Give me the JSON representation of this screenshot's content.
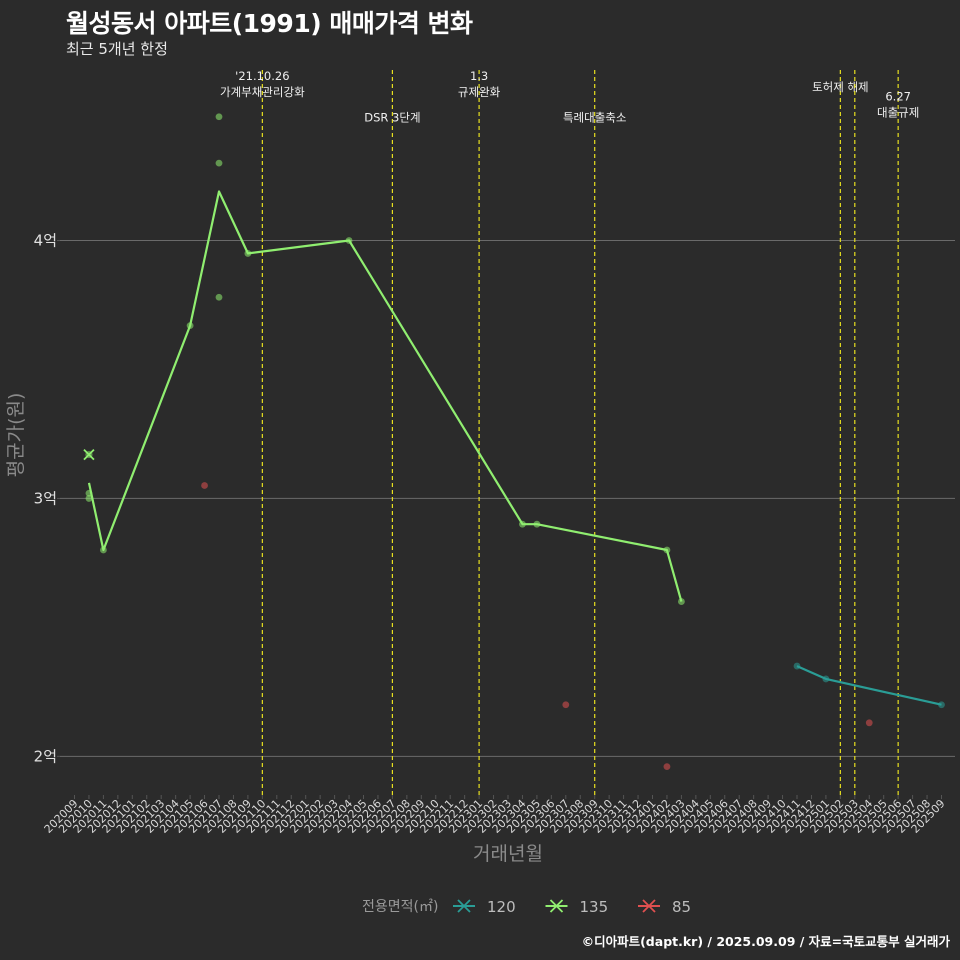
{
  "title": "월성동서 아파트(1991) 매매가격 변화",
  "subtitle": "최근 5개년 한정",
  "caption": "©디아파트(dapt.kr) / 2025.09.09 / 자료=국토교통부 실거래가",
  "chart_data": {
    "type": "line",
    "xlabel": "거래년월",
    "ylabel": "평균가(원)",
    "ylim": [
      1.85,
      4.7
    ],
    "y_unit": "억",
    "y_ticks": [
      {
        "value": 2,
        "label": "2억"
      },
      {
        "value": 3,
        "label": "3억"
      },
      {
        "value": 4,
        "label": "4억"
      }
    ],
    "grid": "horizontal",
    "months": [
      "202009",
      "202010",
      "202011",
      "202012",
      "202101",
      "202102",
      "202103",
      "202104",
      "202105",
      "202106",
      "202107",
      "202108",
      "202109",
      "202110",
      "202111",
      "202112",
      "202201",
      "202202",
      "202203",
      "202204",
      "202205",
      "202206",
      "202207",
      "202208",
      "202209",
      "202210",
      "202211",
      "202212",
      "202301",
      "202302",
      "202303",
      "202304",
      "202305",
      "202306",
      "202307",
      "202308",
      "202309",
      "202310",
      "202311",
      "202312",
      "202401",
      "202402",
      "202403",
      "202404",
      "202405",
      "202406",
      "202407",
      "202408",
      "202409",
      "202410",
      "202411",
      "202412",
      "202501",
      "202502",
      "202503",
      "202504",
      "202505",
      "202506",
      "202507",
      "202508",
      "202509"
    ],
    "events": [
      {
        "month": "202110",
        "label_lines": [
          "'21.10.26",
          "가계부채관리강화"
        ],
        "value": 4.58
      },
      {
        "month": "202207",
        "label_lines": [
          "DSR 3단계"
        ],
        "value": 4.48
      },
      {
        "month": "202301",
        "label_lines": [
          "1.3",
          "규제완화"
        ],
        "value": 4.58
      },
      {
        "month": "202309",
        "label_lines": [
          "특례대출축소"
        ],
        "value": 4.48
      },
      {
        "month": "202502",
        "label_lines": [
          "토허제 해제"
        ],
        "value": 4.6
      },
      {
        "month": "202503",
        "label_lines": [],
        "value": 4.6
      },
      {
        "month": "202506",
        "label_lines": [
          "6.27",
          "대출규제"
        ],
        "value": 4.5
      }
    ],
    "series": [
      {
        "name": "120",
        "color": "#2a9d96",
        "line": [
          [
            "202411",
            2.35
          ],
          [
            "202501",
            2.3
          ],
          [
            "202509",
            2.2
          ]
        ],
        "points": [
          [
            "202411",
            2.35
          ],
          [
            "202501",
            2.3
          ],
          [
            "202509",
            2.2
          ]
        ]
      },
      {
        "name": "135",
        "color": "#90ee70",
        "line": [
          [
            "202010",
            3.06
          ],
          [
            "202011",
            2.8
          ],
          [
            "202105",
            3.67
          ],
          [
            "202107",
            4.19
          ],
          [
            "202109",
            3.95
          ],
          [
            "202204",
            4.0
          ],
          [
            "202304",
            2.9
          ],
          [
            "202305",
            2.9
          ],
          [
            "202402",
            2.8
          ],
          [
            "202403",
            2.6
          ]
        ],
        "points": [
          [
            "202010",
            3.0
          ],
          [
            "202010",
            3.02
          ],
          [
            "202011",
            2.8
          ],
          [
            "202105",
            3.67
          ],
          [
            "202107",
            4.48
          ],
          [
            "202107",
            4.3
          ],
          [
            "202107",
            3.78
          ],
          [
            "202109",
            3.95
          ],
          [
            "202204",
            4.0
          ],
          [
            "202304",
            2.9
          ],
          [
            "202305",
            2.9
          ],
          [
            "202402",
            2.8
          ],
          [
            "202403",
            2.6
          ]
        ],
        "cross": [
          [
            "202010",
            3.17
          ]
        ]
      },
      {
        "name": "85",
        "color": "#e05050",
        "line": [],
        "points": [
          [
            "202106",
            3.05
          ],
          [
            "202307",
            2.2
          ],
          [
            "202402",
            1.96
          ],
          [
            "202504",
            2.13
          ]
        ]
      }
    ],
    "legend": {
      "title": "전용면적(㎡)",
      "position": "bottom"
    }
  }
}
